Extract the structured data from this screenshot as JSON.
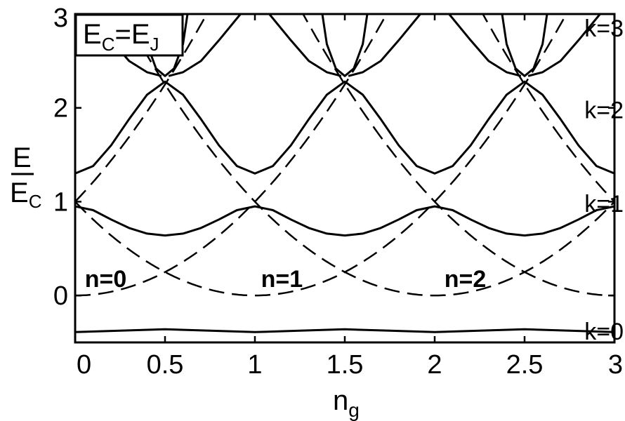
{
  "chart_data": {
    "type": "line",
    "x_axis": {
      "range": [
        0,
        3
      ],
      "ticks": [
        0,
        0.5,
        1,
        1.5,
        2,
        2.5,
        3
      ],
      "tick_labels": [
        "0",
        "0.5",
        "1",
        "1.5",
        "2",
        "2.5",
        "3"
      ],
      "label_main": "n",
      "label_sub": "g"
    },
    "y_axis": {
      "range": [
        -0.5,
        3
      ],
      "ticks": [
        0,
        1,
        2,
        3
      ],
      "tick_labels": [
        "0",
        "1",
        "2",
        "3"
      ],
      "label_numerator": "E",
      "label_denominator_main": "E",
      "label_denominator_sub": "C"
    },
    "legend_box": {
      "lhs_main": "E",
      "lhs_sub": "C",
      "equals": "=",
      "rhs_main": "E",
      "rhs_sub": "J",
      "placement": "top-left"
    },
    "charging_parabolas": {
      "style": "dashed",
      "formula": "E/E_C = (n_g - n)^2",
      "n_values": [
        -1,
        0,
        1,
        2,
        3,
        4
      ]
    },
    "band_labels": [
      {
        "text": "k=0",
        "y": -0.38
      },
      {
        "text": "k=1",
        "y": 0.98
      },
      {
        "text": "k=2",
        "y": 1.98
      },
      {
        "text": "k=3",
        "y": 2.85
      }
    ],
    "charge_labels": [
      {
        "text": "n=0",
        "x": 0.17
      },
      {
        "text": "n=1",
        "x": 1.15
      },
      {
        "text": "n=2",
        "x": 2.17
      }
    ],
    "bands": [
      {
        "name": "k=0",
        "style": "solid",
        "x": [
          0,
          0.25,
          0.5,
          0.75,
          1,
          1.25,
          1.5,
          1.75,
          2,
          2.25,
          2.5,
          2.75,
          3
        ],
        "y": [
          -0.39,
          -0.375,
          -0.36,
          -0.375,
          -0.39,
          -0.375,
          -0.36,
          -0.375,
          -0.39,
          -0.375,
          -0.36,
          -0.375,
          -0.39
        ]
      },
      {
        "name": "k=1",
        "style": "solid",
        "x": [
          0,
          0.1,
          0.2,
          0.3,
          0.4,
          0.5,
          0.6,
          0.7,
          0.8,
          0.9,
          1,
          1.1,
          1.2,
          1.3,
          1.4,
          1.5,
          1.6,
          1.7,
          1.8,
          1.9,
          2,
          2.1,
          2.2,
          2.3,
          2.4,
          2.5,
          2.6,
          2.7,
          2.8,
          2.9,
          3
        ],
        "y": [
          0.95,
          0.91,
          0.81,
          0.72,
          0.66,
          0.64,
          0.66,
          0.72,
          0.81,
          0.91,
          0.95,
          0.91,
          0.81,
          0.72,
          0.66,
          0.64,
          0.66,
          0.72,
          0.81,
          0.91,
          0.95,
          0.91,
          0.81,
          0.72,
          0.66,
          0.64,
          0.66,
          0.72,
          0.81,
          0.91,
          0.95
        ]
      },
      {
        "name": "k=2",
        "style": "solid",
        "x": [
          0,
          0.1,
          0.2,
          0.3,
          0.4,
          0.5,
          0.6,
          0.7,
          0.8,
          0.9,
          1,
          1.1,
          1.2,
          1.3,
          1.4,
          1.5,
          1.6,
          1.7,
          1.8,
          1.9,
          2,
          2.1,
          2.2,
          2.3,
          2.4,
          2.5,
          2.6,
          2.7,
          2.8,
          2.9,
          3
        ],
        "y": [
          1.3,
          1.38,
          1.6,
          1.88,
          2.14,
          2.28,
          2.14,
          1.88,
          1.6,
          1.38,
          1.3,
          1.38,
          1.6,
          1.88,
          2.14,
          2.28,
          2.14,
          1.88,
          1.6,
          1.38,
          1.3,
          1.38,
          1.6,
          1.88,
          2.14,
          2.28,
          2.14,
          1.88,
          1.6,
          1.38,
          1.3
        ]
      },
      {
        "name": "k=3",
        "style": "solid",
        "x": [
          0.375,
          0.4,
          0.45,
          0.5,
          0.55,
          0.6,
          0.625,
          null,
          1.375,
          1.4,
          1.45,
          1.5,
          1.55,
          1.6,
          1.625,
          null,
          2.375,
          2.4,
          2.45,
          2.5,
          2.55,
          2.6,
          2.625
        ],
        "y": [
          3.0,
          2.68,
          2.42,
          2.34,
          2.42,
          2.68,
          3.0,
          null,
          3.0,
          2.68,
          2.42,
          2.34,
          2.42,
          2.68,
          3.0,
          null,
          3.0,
          2.68,
          2.42,
          2.34,
          2.42,
          2.68,
          3.0
        ]
      },
      {
        "name": "k=4",
        "style": "solid",
        "x": [
          0.08,
          0.2,
          0.3,
          0.4,
          0.48,
          null,
          0.52,
          0.6,
          0.7,
          0.8,
          0.92,
          null,
          1.08,
          1.2,
          1.3,
          1.4,
          1.48,
          null,
          1.52,
          1.6,
          1.7,
          1.8,
          1.92,
          null,
          2.08,
          2.2,
          2.3,
          2.4,
          2.48,
          null,
          2.52,
          2.6,
          2.7,
          2.8,
          2.92
        ],
        "y": [
          3.0,
          2.72,
          2.5,
          2.38,
          2.34,
          null,
          2.34,
          2.38,
          2.5,
          2.72,
          3.0,
          null,
          3.0,
          2.72,
          2.5,
          2.38,
          2.34,
          null,
          2.34,
          2.38,
          2.5,
          2.72,
          3.0,
          null,
          3.0,
          2.72,
          2.5,
          2.38,
          2.34,
          null,
          2.34,
          2.38,
          2.5,
          2.72,
          3.0
        ]
      }
    ]
  }
}
